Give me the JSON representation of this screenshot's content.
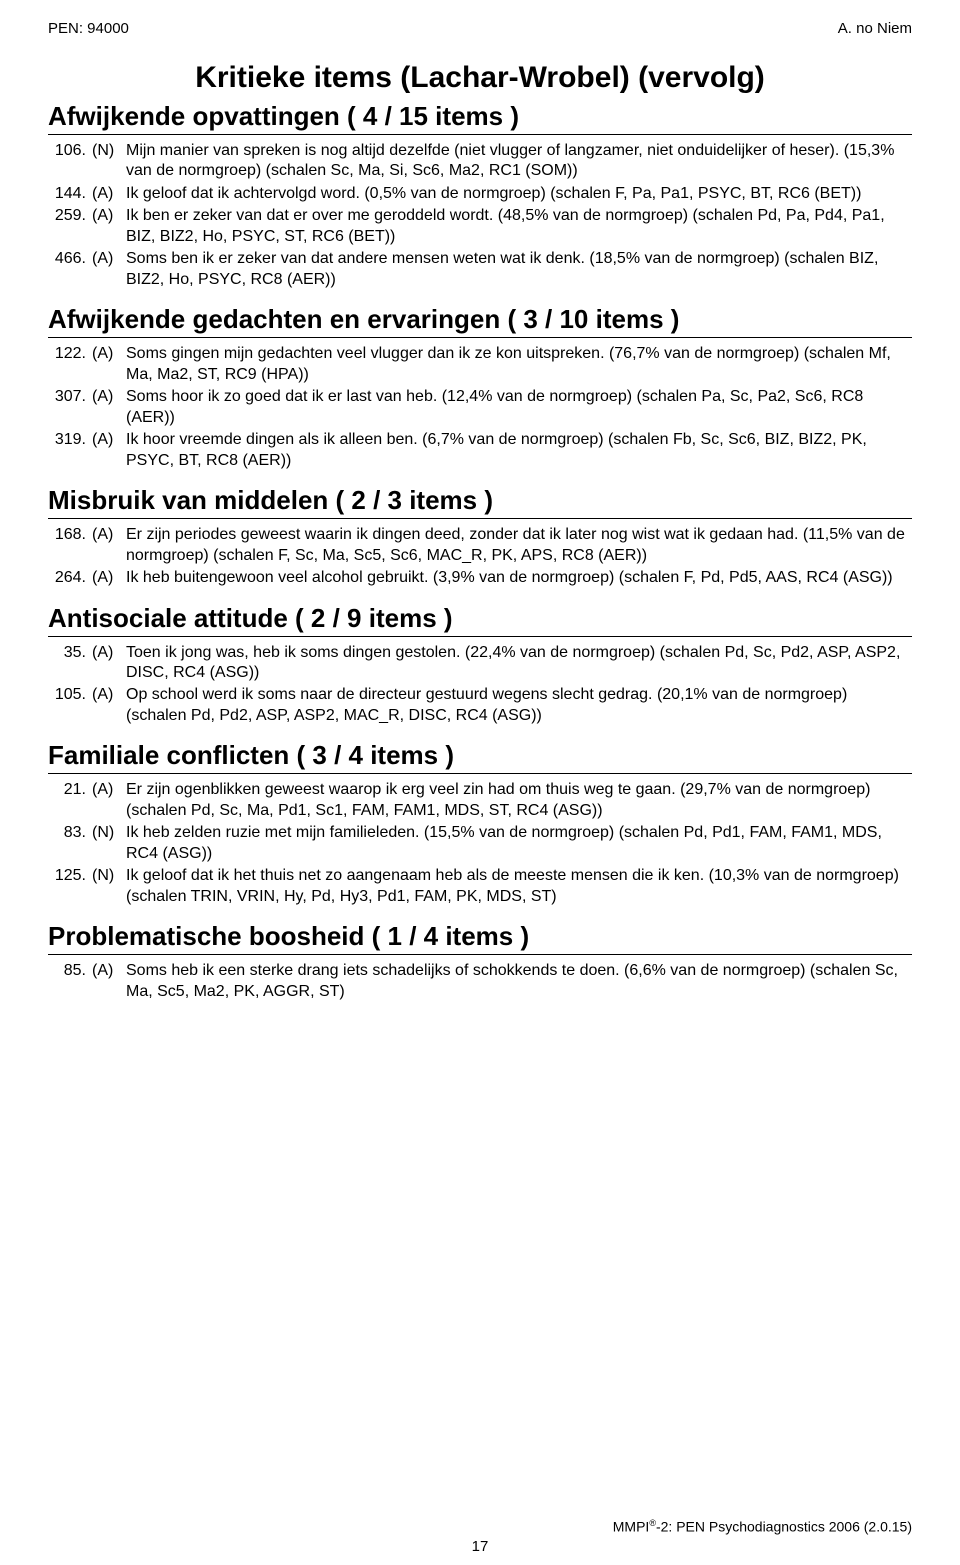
{
  "header": {
    "left": "PEN: 94000",
    "right": "A. no Niem"
  },
  "main_title": "Kritieke items (Lachar-Wrobel) (vervolg)",
  "sections": [
    {
      "heading": "Afwijkende opvattingen  ( 4 / 15 items )",
      "items": [
        {
          "num": "106.",
          "resp": "(N)",
          "text": "Mijn manier van spreken is nog altijd dezelfde (niet vlugger of langzamer, niet onduidelijker of heser). (15,3% van de normgroep) (schalen Sc, Ma, Si, Sc6, Ma2, RC1 (SOM))"
        },
        {
          "num": "144.",
          "resp": "(A)",
          "text": "Ik geloof dat ik achtervolgd word. (0,5% van de normgroep) (schalen F, Pa, Pa1, PSYC, BT, RC6 (BET))"
        },
        {
          "num": "259.",
          "resp": "(A)",
          "text": "Ik ben er zeker van dat er over me geroddeld wordt. (48,5% van de normgroep) (schalen Pd, Pa, Pd4, Pa1, BIZ, BIZ2, Ho, PSYC, ST, RC6 (BET))"
        },
        {
          "num": "466.",
          "resp": "(A)",
          "text": "Soms ben ik er zeker van dat andere mensen weten wat ik denk. (18,5% van de normgroep) (schalen BIZ, BIZ2, Ho, PSYC, RC8 (AER))"
        }
      ]
    },
    {
      "heading": "Afwijkende gedachten en ervaringen  ( 3 / 10 items )",
      "items": [
        {
          "num": "122.",
          "resp": "(A)",
          "text": "Soms gingen mijn gedachten veel vlugger dan ik ze kon uitspreken. (76,7% van de normgroep) (schalen Mf, Ma, Ma2, ST, RC9 (HPA))"
        },
        {
          "num": "307.",
          "resp": "(A)",
          "text": "Soms hoor ik zo goed dat ik er last van heb. (12,4% van de normgroep) (schalen Pa, Sc, Pa2, Sc6, RC8 (AER))"
        },
        {
          "num": "319.",
          "resp": "(A)",
          "text": "Ik hoor vreemde dingen als ik alleen ben. (6,7% van de normgroep) (schalen Fb, Sc, Sc6, BIZ, BIZ2, PK, PSYC, BT, RC8 (AER))"
        }
      ]
    },
    {
      "heading": "Misbruik van middelen  ( 2 / 3 items )",
      "items": [
        {
          "num": "168.",
          "resp": "(A)",
          "text": "Er zijn periodes geweest waarin ik dingen deed, zonder dat ik later nog wist wat ik gedaan had. (11,5% van de normgroep) (schalen F, Sc, Ma, Sc5, Sc6, MAC_R, PK, APS, RC8 (AER))"
        },
        {
          "num": "264.",
          "resp": "(A)",
          "text": "Ik heb buitengewoon veel alcohol gebruikt. (3,9% van de normgroep) (schalen F, Pd, Pd5, AAS, RC4 (ASG))"
        }
      ]
    },
    {
      "heading": "Antisociale attitude  ( 2 / 9 items )",
      "items": [
        {
          "num": "35.",
          "resp": "(A)",
          "text": "Toen ik jong was, heb ik soms dingen gestolen. (22,4% van de normgroep) (schalen Pd, Sc, Pd2, ASP, ASP2, DISC, RC4 (ASG))"
        },
        {
          "num": "105.",
          "resp": "(A)",
          "text": "Op school werd ik soms naar de directeur gestuurd wegens slecht gedrag. (20,1% van de normgroep) (schalen Pd, Pd2, ASP, ASP2, MAC_R, DISC, RC4 (ASG))"
        }
      ]
    },
    {
      "heading": "Familiale conflicten  ( 3 / 4 items )",
      "items": [
        {
          "num": "21.",
          "resp": "(A)",
          "text": "Er zijn ogenblikken geweest waarop ik erg veel zin had om thuis weg te gaan. (29,7% van de normgroep) (schalen Pd, Sc, Ma, Pd1, Sc1, FAM, FAM1, MDS, ST, RC4 (ASG))"
        },
        {
          "num": "83.",
          "resp": "(N)",
          "text": "Ik heb zelden ruzie met mijn familieleden. (15,5% van de normgroep) (schalen Pd, Pd1, FAM, FAM1, MDS, RC4 (ASG))"
        },
        {
          "num": "125.",
          "resp": "(N)",
          "text": "Ik geloof dat ik het thuis net zo aangenaam heb als de meeste mensen die ik ken. (10,3% van de normgroep) (schalen TRIN, VRIN, Hy, Pd, Hy3, Pd1, FAM, PK, MDS, ST)"
        }
      ]
    },
    {
      "heading": "Problematische boosheid  ( 1 / 4 items )",
      "items": [
        {
          "num": "85.",
          "resp": "(A)",
          "text": "Soms heb ik een sterke drang iets schadelijks of schokkends te doen. (6,6% van de normgroep) (schalen Sc, Ma, Sc5, Ma2, PK, AGGR, ST)"
        }
      ]
    }
  ],
  "footer": {
    "prefix": "MMPI",
    "sup": "®",
    "suffix": "-2: PEN Psychodiagnostics 2006 (2.0.15)"
  },
  "page_num": "17"
}
